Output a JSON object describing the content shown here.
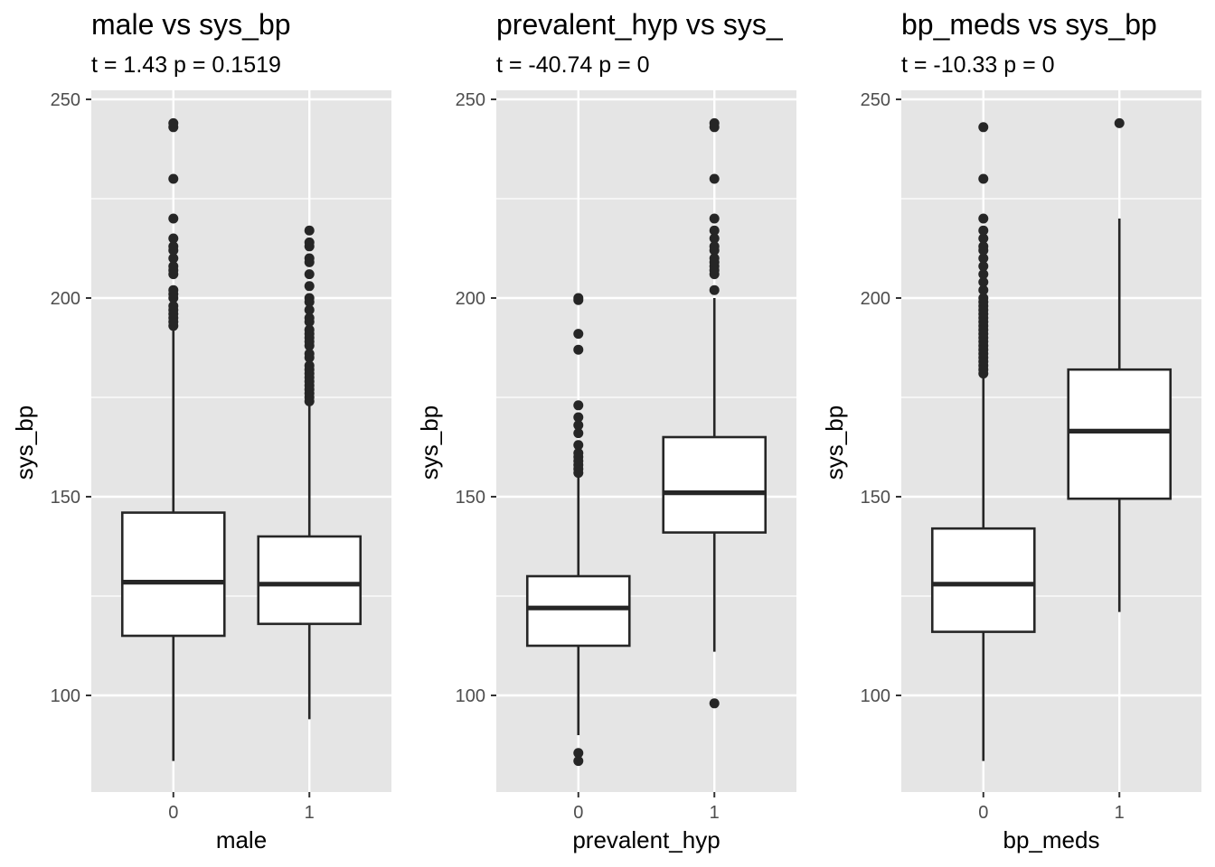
{
  "theme": {
    "panel_bg": "#e5e5e5",
    "grid_color": "#ffffff",
    "box_fill": "#ffffff",
    "box_stroke": "#262626",
    "tick_color": "#333333"
  },
  "chart_data": [
    {
      "type": "boxplot",
      "title": "male vs sys_bp",
      "subtitle": "t = 1.43 p = 0.1519",
      "xlabel": "male",
      "ylabel": "sys_bp",
      "ylim": [
        83.5,
        258
      ],
      "yticks": [
        "100",
        "150",
        "200",
        "250"
      ],
      "grid": true,
      "categories": [
        "0",
        "1"
      ],
      "boxes": [
        {
          "category": "0",
          "whisker_low": 83.5,
          "q1": 115,
          "median": 128.5,
          "q3": 146,
          "whisker_high": 192,
          "outliers": [
            193,
            194,
            195,
            196,
            197,
            198,
            200,
            201,
            202,
            206,
            207,
            208,
            210,
            212,
            213,
            215,
            220,
            230,
            243,
            244
          ]
        },
        {
          "category": "1",
          "whisker_low": 94,
          "q1": 118,
          "median": 128,
          "q3": 140,
          "whisker_high": 173,
          "outliers": [
            174,
            175,
            176,
            177,
            178,
            179,
            180,
            181,
            182,
            183,
            185,
            186,
            188,
            189,
            190,
            191,
            192,
            194,
            195,
            197,
            199,
            200,
            203,
            206,
            209,
            210,
            213,
            214,
            217
          ]
        }
      ]
    },
    {
      "type": "boxplot",
      "title": "prevalent_hyp vs sys_",
      "subtitle": "t = -40.74 p = 0",
      "xlabel": "prevalent_hyp",
      "ylabel": "sys_bp",
      "ylim": [
        83.5,
        258
      ],
      "yticks": [
        "100",
        "150",
        "200",
        "250"
      ],
      "grid": true,
      "categories": [
        "0",
        "1"
      ],
      "boxes": [
        {
          "category": "0",
          "whisker_low": 90,
          "q1": 112.5,
          "median": 122,
          "q3": 130,
          "whisker_high": 155,
          "outliers": [
            83.5,
            85.5,
            156,
            157,
            158,
            159,
            160,
            161,
            163,
            166,
            168,
            170,
            173,
            187,
            191,
            199.5,
            200
          ]
        },
        {
          "category": "1",
          "whisker_low": 111,
          "q1": 141,
          "median": 151,
          "q3": 165,
          "whisker_high": 200,
          "outliers": [
            98,
            202,
            206,
            207,
            208,
            209,
            210,
            212,
            213,
            215,
            217,
            220,
            230,
            243,
            244
          ]
        }
      ]
    },
    {
      "type": "boxplot",
      "title": "bp_meds vs sys_bp",
      "subtitle": "t = -10.33 p = 0",
      "xlabel": "bp_meds",
      "ylabel": "sys_bp",
      "ylim": [
        83.5,
        258
      ],
      "yticks": [
        "100",
        "150",
        "200",
        "250"
      ],
      "grid": true,
      "categories": [
        "0",
        "1"
      ],
      "boxes": [
        {
          "category": "0",
          "whisker_low": 83.5,
          "q1": 116,
          "median": 128,
          "q3": 142,
          "whisker_high": 180,
          "outliers": [
            181,
            182,
            183,
            184,
            185,
            186,
            187,
            188,
            189,
            190,
            191,
            192,
            193,
            194,
            195,
            196,
            197,
            198,
            199,
            200,
            202,
            204,
            206,
            208,
            210,
            212,
            213,
            215,
            217,
            220,
            230,
            243
          ]
        },
        {
          "category": "1",
          "whisker_low": 121,
          "q1": 149.5,
          "median": 166.5,
          "q3": 182,
          "whisker_high": 220,
          "outliers": [
            244
          ]
        }
      ]
    }
  ]
}
